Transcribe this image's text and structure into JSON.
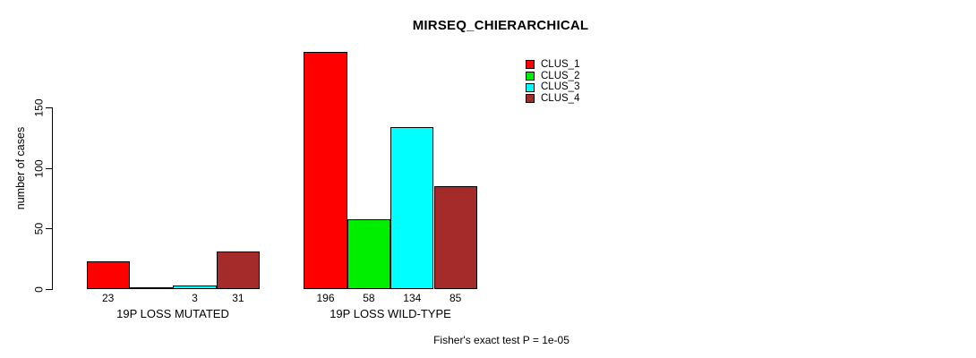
{
  "title": "MIRSEQ_CHIERARCHICAL",
  "ylabel": "number of cases",
  "annotation": "Fisher's exact test P = 1e-05",
  "colors": {
    "clus1": "#FF0000",
    "clus2": "#00EE00",
    "clus3": "#00FFFF",
    "clus4": "#A52A2A",
    "axis": "#000000",
    "background": "#FFFFFF"
  },
  "legend": {
    "position": "top-right",
    "items": [
      {
        "label": "CLUS_1",
        "color": "#FF0000"
      },
      {
        "label": "CLUS_2",
        "color": "#00EE00"
      },
      {
        "label": "CLUS_3",
        "color": "#00FFFF"
      },
      {
        "label": "CLUS_4",
        "color": "#A52A2A"
      }
    ]
  },
  "chart_data": {
    "type": "bar",
    "title": "MIRSEQ_CHIERARCHICAL",
    "ylabel": "number of cases",
    "xlabel": "",
    "groups": [
      "19P LOSS MUTATED",
      "19P LOSS WILD-TYPE"
    ],
    "series": [
      {
        "name": "CLUS_1",
        "color": "#FF0000",
        "values": [
          23,
          196
        ]
      },
      {
        "name": "CLUS_2",
        "color": "#00EE00",
        "values": [
          0,
          58
        ]
      },
      {
        "name": "CLUS_3",
        "color": "#00FFFF",
        "values": [
          3,
          134
        ]
      },
      {
        "name": "CLUS_4",
        "color": "#A52A2A",
        "values": [
          31,
          85
        ]
      }
    ],
    "bar_value_labels": [
      [
        "23",
        null,
        "3",
        "31"
      ],
      [
        "196",
        "58",
        "134",
        "85"
      ]
    ],
    "yticks": [
      0,
      50,
      100,
      150
    ],
    "ylim": [
      0,
      150
    ],
    "grid": false,
    "legend_position": "top-right",
    "annotation": "Fisher's exact test P = 1e-05"
  }
}
